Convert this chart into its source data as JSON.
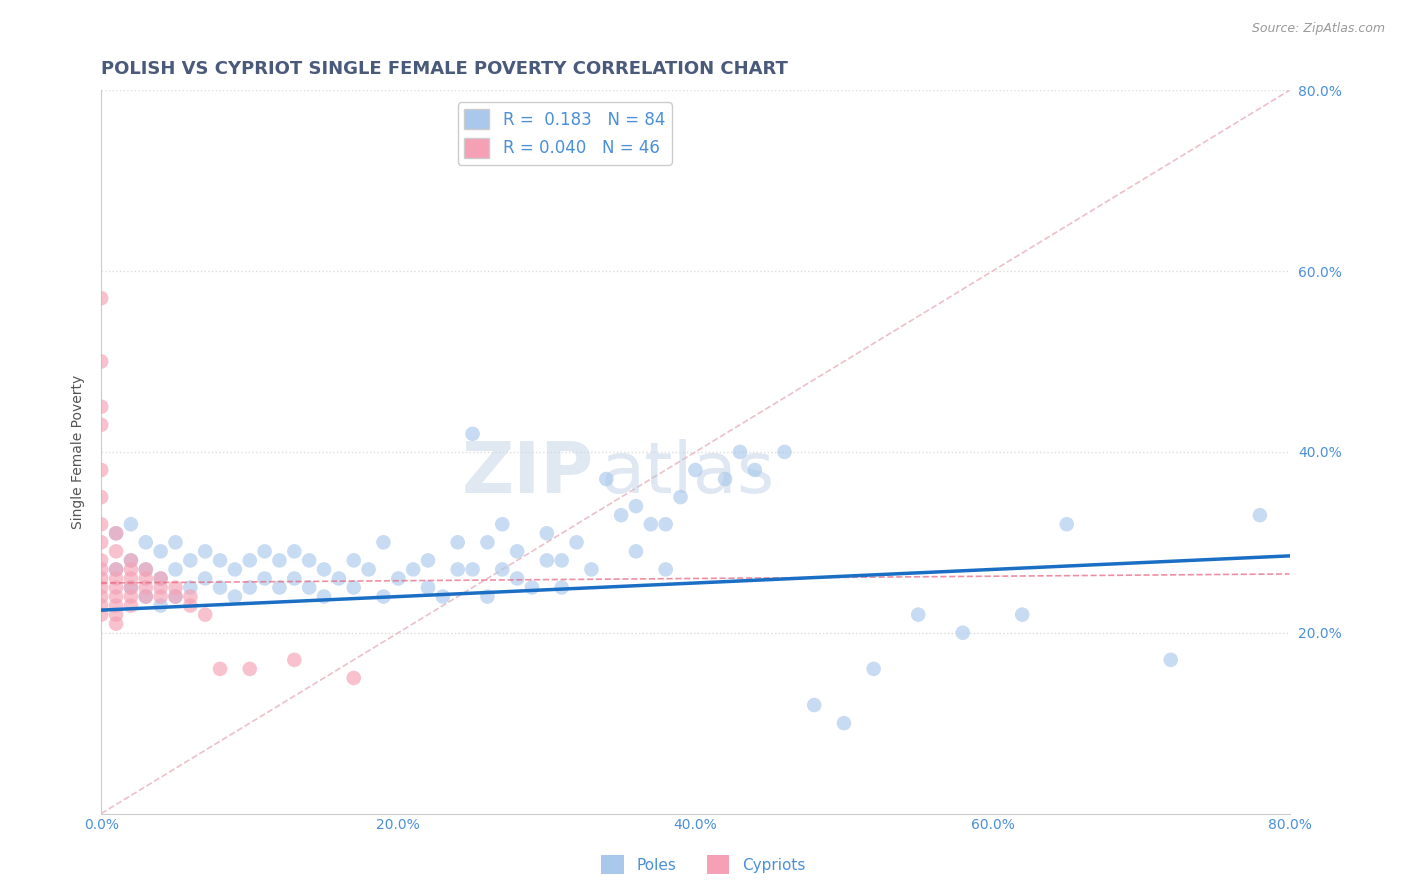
{
  "title": "POLISH VS CYPRIOT SINGLE FEMALE POVERTY CORRELATION CHART",
  "source": "Source: ZipAtlas.com",
  "ylabel": "Single Female Poverty",
  "xlim": [
    0.0,
    0.8
  ],
  "ylim": [
    0.0,
    0.8
  ],
  "poles_R": 0.183,
  "poles_N": 84,
  "cypriots_R": 0.04,
  "cypriots_N": 46,
  "poles_color": "#aac8eb",
  "poles_edge_color": "#aac8eb",
  "poles_line_color": "#1a6fc4",
  "cypriots_color": "#f5a0b5",
  "cypriots_edge_color": "#f5a0b5",
  "cypriots_line_color": "#e8607a",
  "diagonal_color": "#cccccc",
  "grid_color": "#dddddd",
  "background_color": "#ffffff",
  "title_color": "#4a5a7a",
  "tick_color": "#4a90d9",
  "source_color": "#999999",
  "ylabel_color": "#555555",
  "poles_x": [
    0.01,
    0.01,
    0.02,
    0.02,
    0.02,
    0.03,
    0.03,
    0.03,
    0.04,
    0.04,
    0.04,
    0.05,
    0.05,
    0.05,
    0.06,
    0.06,
    0.07,
    0.07,
    0.08,
    0.08,
    0.09,
    0.09,
    0.1,
    0.1,
    0.11,
    0.11,
    0.12,
    0.12,
    0.13,
    0.13,
    0.14,
    0.14,
    0.15,
    0.15,
    0.16,
    0.17,
    0.17,
    0.18,
    0.19,
    0.19,
    0.2,
    0.21,
    0.22,
    0.22,
    0.23,
    0.24,
    0.24,
    0.25,
    0.25,
    0.26,
    0.26,
    0.27,
    0.27,
    0.28,
    0.28,
    0.29,
    0.3,
    0.3,
    0.31,
    0.31,
    0.32,
    0.33,
    0.34,
    0.35,
    0.36,
    0.36,
    0.37,
    0.38,
    0.38,
    0.39,
    0.4,
    0.42,
    0.43,
    0.44,
    0.46,
    0.48,
    0.5,
    0.52,
    0.55,
    0.58,
    0.62,
    0.65,
    0.72,
    0.78
  ],
  "poles_y": [
    0.27,
    0.31,
    0.25,
    0.28,
    0.32,
    0.24,
    0.27,
    0.3,
    0.23,
    0.26,
    0.29,
    0.24,
    0.27,
    0.3,
    0.25,
    0.28,
    0.26,
    0.29,
    0.25,
    0.28,
    0.24,
    0.27,
    0.25,
    0.28,
    0.26,
    0.29,
    0.25,
    0.28,
    0.26,
    0.29,
    0.25,
    0.28,
    0.24,
    0.27,
    0.26,
    0.25,
    0.28,
    0.27,
    0.24,
    0.3,
    0.26,
    0.27,
    0.25,
    0.28,
    0.24,
    0.27,
    0.3,
    0.42,
    0.27,
    0.24,
    0.3,
    0.27,
    0.32,
    0.26,
    0.29,
    0.25,
    0.28,
    0.31,
    0.25,
    0.28,
    0.3,
    0.27,
    0.37,
    0.33,
    0.29,
    0.34,
    0.32,
    0.27,
    0.32,
    0.35,
    0.38,
    0.37,
    0.4,
    0.38,
    0.4,
    0.12,
    0.1,
    0.16,
    0.22,
    0.2,
    0.22,
    0.32,
    0.17,
    0.33
  ],
  "cypriots_x": [
    0.0,
    0.0,
    0.0,
    0.0,
    0.0,
    0.0,
    0.0,
    0.0,
    0.0,
    0.0,
    0.0,
    0.0,
    0.0,
    0.0,
    0.0,
    0.01,
    0.01,
    0.01,
    0.01,
    0.01,
    0.01,
    0.01,
    0.01,
    0.01,
    0.02,
    0.02,
    0.02,
    0.02,
    0.02,
    0.02,
    0.03,
    0.03,
    0.03,
    0.03,
    0.04,
    0.04,
    0.04,
    0.05,
    0.05,
    0.06,
    0.06,
    0.07,
    0.08,
    0.1,
    0.13,
    0.17
  ],
  "cypriots_y": [
    0.57,
    0.5,
    0.45,
    0.43,
    0.38,
    0.35,
    0.32,
    0.3,
    0.28,
    0.27,
    0.26,
    0.25,
    0.24,
    0.23,
    0.22,
    0.31,
    0.29,
    0.27,
    0.26,
    0.25,
    0.24,
    0.23,
    0.22,
    0.21,
    0.28,
    0.27,
    0.26,
    0.25,
    0.24,
    0.23,
    0.27,
    0.26,
    0.25,
    0.24,
    0.26,
    0.25,
    0.24,
    0.25,
    0.24,
    0.24,
    0.23,
    0.22,
    0.16,
    0.16,
    0.17,
    0.15
  ],
  "marker_size": 110,
  "alpha": 0.65,
  "title_fontsize": 13,
  "label_fontsize": 10,
  "tick_fontsize": 10,
  "legend_fontsize": 12,
  "watermark_text": "ZIP",
  "watermark_text2": "atlas"
}
